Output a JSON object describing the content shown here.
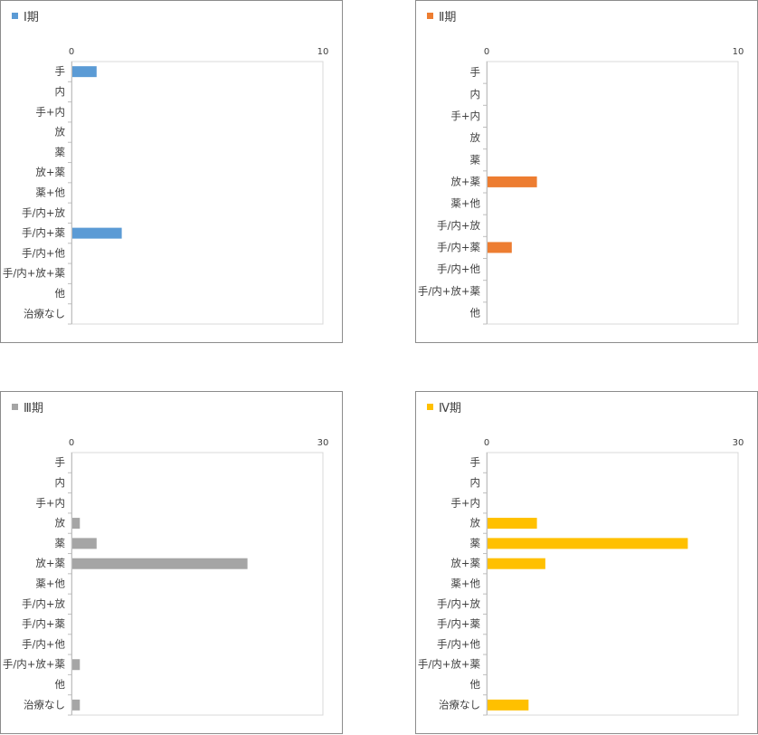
{
  "chart_data": [
    {
      "type": "bar",
      "orientation": "horizontal",
      "legend": "Ⅰ期",
      "legend_position": "top-left",
      "color": "#5b9bd5",
      "categories": [
        "手",
        "内",
        "手+内",
        "放",
        "薬",
        "放+薬",
        "薬+他",
        "手/内+放",
        "手/内+薬",
        "手/内+他",
        "手/内+放+薬",
        "他",
        "治療なし"
      ],
      "values": [
        1,
        0,
        0,
        0,
        0,
        0,
        0,
        0,
        2,
        0,
        0,
        0,
        0
      ],
      "xlim": [
        0,
        10
      ],
      "xticks": [
        "0",
        "10"
      ],
      "grid": false
    },
    {
      "type": "bar",
      "orientation": "horizontal",
      "legend": "Ⅱ期",
      "legend_position": "top-left",
      "color": "#ed7d31",
      "categories": [
        "手",
        "内",
        "手+内",
        "放",
        "薬",
        "放+薬",
        "薬+他",
        "手/内+放",
        "手/内+薬",
        "手/内+他",
        "手/内+放+薬",
        "他"
      ],
      "values": [
        0,
        0,
        0,
        0,
        0,
        2,
        0,
        0,
        1,
        0,
        0,
        0
      ],
      "xlim": [
        0,
        10
      ],
      "xticks": [
        "0",
        "10"
      ],
      "grid": false
    },
    {
      "type": "bar",
      "orientation": "horizontal",
      "legend": "Ⅲ期",
      "legend_position": "top-left",
      "color": "#a5a5a5",
      "categories": [
        "手",
        "内",
        "手+内",
        "放",
        "薬",
        "放+薬",
        "薬+他",
        "手/内+放",
        "手/内+薬",
        "手/内+他",
        "手/内+放+薬",
        "他",
        "治療なし"
      ],
      "values": [
        0,
        0,
        0,
        1,
        3,
        21,
        0,
        0,
        0,
        0,
        1,
        0,
        1
      ],
      "xlim": [
        0,
        30
      ],
      "xticks": [
        "0",
        "30"
      ],
      "grid": false
    },
    {
      "type": "bar",
      "orientation": "horizontal",
      "legend": "Ⅳ期",
      "legend_position": "top-left",
      "color": "#ffc000",
      "categories": [
        "手",
        "内",
        "手+内",
        "放",
        "薬",
        "放+薬",
        "薬+他",
        "手/内+放",
        "手/内+薬",
        "手/内+他",
        "手/内+放+薬",
        "他",
        "治療なし"
      ],
      "values": [
        0,
        0,
        0,
        6,
        24,
        7,
        0,
        0,
        0,
        0,
        0,
        0,
        5
      ],
      "xlim": [
        0,
        30
      ],
      "xticks": [
        "0",
        "30"
      ],
      "grid": false
    }
  ]
}
